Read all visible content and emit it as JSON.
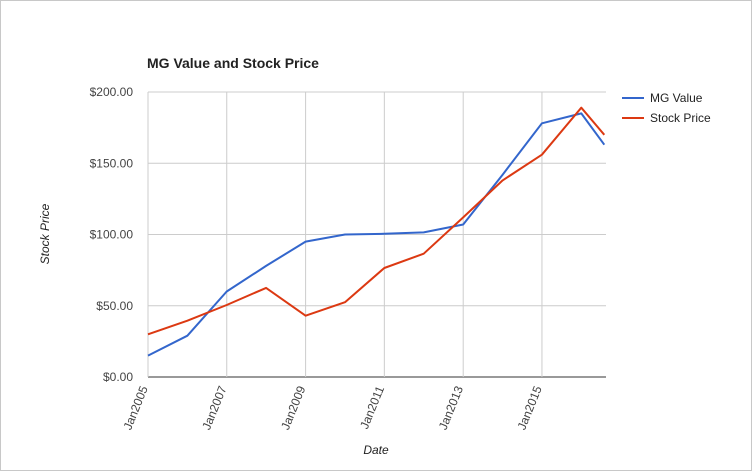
{
  "chart_data": {
    "type": "line",
    "title": "MG Value and Stock Price",
    "xlabel": "Date",
    "ylabel": "Stock Price",
    "x": [
      "2005-01-01",
      "2006-01-01",
      "2007-01-01",
      "2008-01-01",
      "2009-01-01",
      "2010-01-01",
      "2011-01-01",
      "2012-01-01",
      "2013-01-01",
      "2014-01-01",
      "2015-01-01",
      "2016-01-01",
      "2016-08-01"
    ],
    "x_ticks": [
      "Jan2005",
      "Jan2007",
      "Jan2009",
      "Jan2011",
      "Jan2013",
      "Jan2015"
    ],
    "x_tick_dates": [
      "2005-01-01",
      "2007-01-01",
      "2009-01-01",
      "2011-01-01",
      "2013-01-01",
      "2015-01-01"
    ],
    "ylim": [
      0,
      200
    ],
    "y_ticks": [
      "$0.00",
      "$50.00",
      "$100.00",
      "$150.00",
      "$200.00"
    ],
    "y_tick_values": [
      0,
      50,
      100,
      150,
      200
    ],
    "grid": true,
    "legend_position": "right",
    "series": [
      {
        "name": "MG Value",
        "color": "#3366cc",
        "values": [
          15,
          29,
          60,
          78,
          95,
          100,
          100.5,
          101.5,
          107,
          142,
          178,
          185,
          163
        ]
      },
      {
        "name": "Stock Price",
        "color": "#dc3912",
        "values": [
          30,
          39.5,
          50.5,
          62.5,
          43,
          52.5,
          76.5,
          86.5,
          112,
          138,
          156,
          189,
          170
        ]
      }
    ]
  }
}
